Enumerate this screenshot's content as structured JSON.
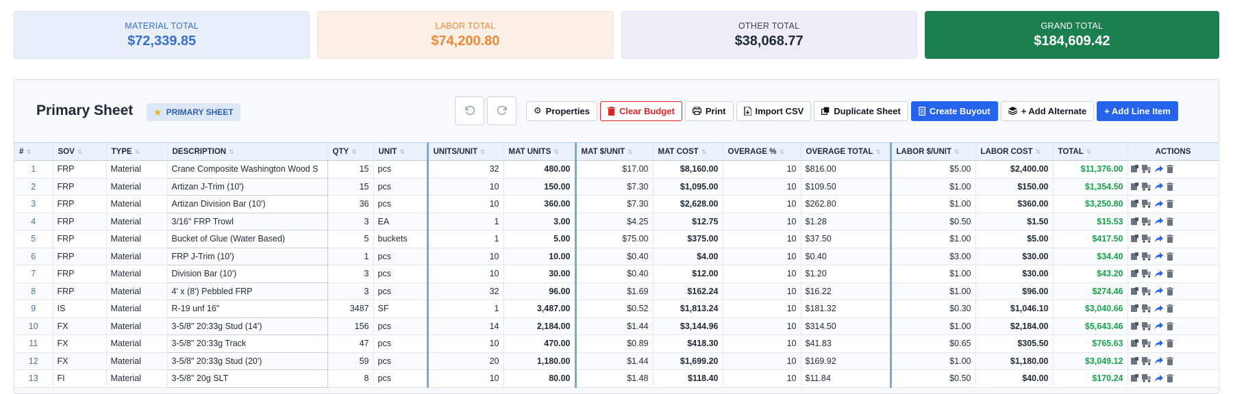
{
  "summary": {
    "material": {
      "label": "MATERIAL TOTAL",
      "value": "$72,339.85"
    },
    "labor": {
      "label": "LABOR TOTAL",
      "value": "$74,200.80"
    },
    "other": {
      "label": "OTHER TOTAL",
      "value": "$38,068.77"
    },
    "grand": {
      "label": "GRAND TOTAL",
      "value": "$184,609.42"
    }
  },
  "sheet": {
    "title": "Primary Sheet",
    "badge": "PRIMARY SHEET"
  },
  "toolbar": {
    "properties": "Properties",
    "clear_budget": "Clear Budget",
    "print": "Print",
    "import_csv": "Import CSV",
    "duplicate_sheet": "Duplicate Sheet",
    "create_buyout": "Create Buyout",
    "add_alternate": "+ Add Alternate",
    "add_line_item": "+ Add Line Item"
  },
  "columns": [
    "#",
    "SOV",
    "TYPE",
    "DESCRIPTION",
    "QTY",
    "UNIT",
    "UNITS/UNIT",
    "MAT UNITS",
    "MAT $/UNIT",
    "MAT COST",
    "OVERAGE %",
    "OVERAGE TOTAL",
    "LABOR $/UNIT",
    "LABOR COST",
    "TOTAL",
    "ACTIONS"
  ],
  "rows": [
    {
      "n": "1",
      "sov": "FRP",
      "type": "Material",
      "desc": "Crane Composite Washington Wood S",
      "qty": "15",
      "unit": "pcs",
      "upu": "32",
      "mu": "480.00",
      "mpu": "$17.00",
      "mc": "$8,160.00",
      "ovp": "10",
      "ovt": "$816.00",
      "lpu": "$5.00",
      "lc": "$2,400.00",
      "tot": "$11,376.00"
    },
    {
      "n": "2",
      "sov": "FRP",
      "type": "Material",
      "desc": "Artizan J-Trim (10')",
      "qty": "15",
      "unit": "pcs",
      "upu": "10",
      "mu": "150.00",
      "mpu": "$7.30",
      "mc": "$1,095.00",
      "ovp": "10",
      "ovt": "$109.50",
      "lpu": "$1.00",
      "lc": "$150.00",
      "tot": "$1,354.50"
    },
    {
      "n": "3",
      "sov": "FRP",
      "type": "Material",
      "desc": "Artizan Division Bar (10')",
      "qty": "36",
      "unit": "pcs",
      "upu": "10",
      "mu": "360.00",
      "mpu": "$7.30",
      "mc": "$2,628.00",
      "ovp": "10",
      "ovt": "$262.80",
      "lpu": "$1.00",
      "lc": "$360.00",
      "tot": "$3,250.80"
    },
    {
      "n": "4",
      "sov": "FRP",
      "type": "Material",
      "desc": "3/16\" FRP Trowl",
      "qty": "3",
      "unit": "EA",
      "upu": "1",
      "mu": "3.00",
      "mpu": "$4.25",
      "mc": "$12.75",
      "ovp": "10",
      "ovt": "$1.28",
      "lpu": "$0.50",
      "lc": "$1.50",
      "tot": "$15.53"
    },
    {
      "n": "5",
      "sov": "FRP",
      "type": "Material",
      "desc": "Bucket of Glue (Water Based)",
      "qty": "5",
      "unit": "buckets",
      "upu": "1",
      "mu": "5.00",
      "mpu": "$75.00",
      "mc": "$375.00",
      "ovp": "10",
      "ovt": "$37.50",
      "lpu": "$1.00",
      "lc": "$5.00",
      "tot": "$417.50"
    },
    {
      "n": "6",
      "sov": "FRP",
      "type": "Material",
      "desc": "FRP J-Trim (10')",
      "qty": "1",
      "unit": "pcs",
      "upu": "10",
      "mu": "10.00",
      "mpu": "$0.40",
      "mc": "$4.00",
      "ovp": "10",
      "ovt": "$0.40",
      "lpu": "$3.00",
      "lc": "$30.00",
      "tot": "$34.40"
    },
    {
      "n": "7",
      "sov": "FRP",
      "type": "Material",
      "desc": "Division Bar (10')",
      "qty": "3",
      "unit": "pcs",
      "upu": "10",
      "mu": "30.00",
      "mpu": "$0.40",
      "mc": "$12.00",
      "ovp": "10",
      "ovt": "$1.20",
      "lpu": "$1.00",
      "lc": "$30.00",
      "tot": "$43.20"
    },
    {
      "n": "8",
      "sov": "FRP",
      "type": "Material",
      "desc": "4' x (8') Pebbled FRP",
      "qty": "3",
      "unit": "pcs",
      "upu": "32",
      "mu": "96.00",
      "mpu": "$1.69",
      "mc": "$162.24",
      "ovp": "10",
      "ovt": "$16.22",
      "lpu": "$1.00",
      "lc": "$96.00",
      "tot": "$274.46"
    },
    {
      "n": "9",
      "sov": "IS",
      "type": "Material",
      "desc": "R-19 unf 16\"",
      "qty": "3487",
      "unit": "SF",
      "upu": "1",
      "mu": "3,487.00",
      "mpu": "$0.52",
      "mc": "$1,813.24",
      "ovp": "10",
      "ovt": "$181.32",
      "lpu": "$0.30",
      "lc": "$1,046.10",
      "tot": "$3,040.66"
    },
    {
      "n": "10",
      "sov": "FX",
      "type": "Material",
      "desc": "3-5/8\" 20:33g Stud (14')",
      "qty": "156",
      "unit": "pcs",
      "upu": "14",
      "mu": "2,184.00",
      "mpu": "$1.44",
      "mc": "$3,144.96",
      "ovp": "10",
      "ovt": "$314.50",
      "lpu": "$1.00",
      "lc": "$2,184.00",
      "tot": "$5,643.46"
    },
    {
      "n": "11",
      "sov": "FX",
      "type": "Material",
      "desc": "3-5/8\" 20:33g Track",
      "qty": "47",
      "unit": "pcs",
      "upu": "10",
      "mu": "470.00",
      "mpu": "$0.89",
      "mc": "$418.30",
      "ovp": "10",
      "ovt": "$41.83",
      "lpu": "$0.65",
      "lc": "$305.50",
      "tot": "$765.63"
    },
    {
      "n": "12",
      "sov": "FX",
      "type": "Material",
      "desc": "3-5/8\" 20:33g Stud (20')",
      "qty": "59",
      "unit": "pcs",
      "upu": "20",
      "mu": "1,180.00",
      "mpu": "$1.44",
      "mc": "$1,699.20",
      "ovp": "10",
      "ovt": "$169.92",
      "lpu": "$1.00",
      "lc": "$1,180.00",
      "tot": "$3,049.12"
    },
    {
      "n": "13",
      "sov": "FI",
      "type": "Material",
      "desc": "3-5/8\" 20g SLT",
      "qty": "8",
      "unit": "pcs",
      "upu": "10",
      "mu": "80.00",
      "mpu": "$1.48",
      "mc": "$118.40",
      "ovp": "10",
      "ovt": "$11.84",
      "lpu": "$0.50",
      "lc": "$40.00",
      "tot": "$170.24"
    }
  ]
}
